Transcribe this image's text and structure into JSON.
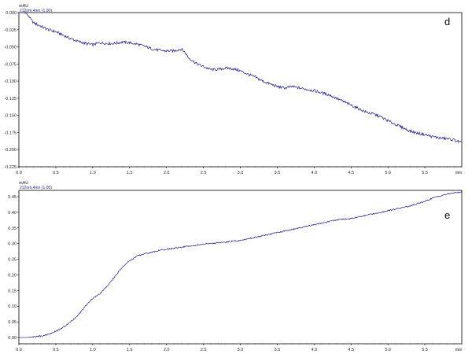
{
  "chart_data": [
    {
      "type": "line",
      "panel_label": "d",
      "y_unit": "mAU",
      "series": [
        {
          "name": "212nm,4nm (1.00)",
          "color": "#1a1a8a",
          "x": [
            0.0,
            0.05,
            0.1,
            0.15,
            0.2,
            0.3,
            0.4,
            0.5,
            0.6,
            0.7,
            0.8,
            0.9,
            1.0,
            1.1,
            1.2,
            1.3,
            1.4,
            1.5,
            1.6,
            1.7,
            1.8,
            1.9,
            2.0,
            2.1,
            2.2,
            2.25,
            2.3,
            2.4,
            2.5,
            2.6,
            2.7,
            2.8,
            2.9,
            3.0,
            3.1,
            3.2,
            3.3,
            3.4,
            3.5,
            3.6,
            3.7,
            3.8,
            3.9,
            4.0,
            4.1,
            4.2,
            4.3,
            4.4,
            4.5,
            4.6,
            4.7,
            4.8,
            4.9,
            5.0,
            5.1,
            5.2,
            5.3,
            5.4,
            5.5,
            5.6,
            5.7,
            5.8,
            5.9,
            6.0
          ],
          "y": [
            0.0,
            0.0,
            -0.001,
            -0.008,
            -0.015,
            -0.02,
            -0.025,
            -0.028,
            -0.033,
            -0.038,
            -0.042,
            -0.045,
            -0.047,
            -0.044,
            -0.045,
            -0.045,
            -0.043,
            -0.044,
            -0.046,
            -0.049,
            -0.053,
            -0.055,
            -0.056,
            -0.056,
            -0.053,
            -0.058,
            -0.066,
            -0.074,
            -0.079,
            -0.083,
            -0.083,
            -0.081,
            -0.082,
            -0.085,
            -0.09,
            -0.094,
            -0.1,
            -0.104,
            -0.108,
            -0.11,
            -0.108,
            -0.11,
            -0.112,
            -0.114,
            -0.117,
            -0.12,
            -0.125,
            -0.13,
            -0.135,
            -0.14,
            -0.145,
            -0.148,
            -0.152,
            -0.158,
            -0.163,
            -0.168,
            -0.173,
            -0.176,
            -0.178,
            -0.181,
            -0.183,
            -0.184,
            -0.186,
            -0.19
          ]
        }
      ],
      "xlim": [
        0.0,
        6.0
      ],
      "ylim": [
        -0.225,
        0.0
      ],
      "x_ticks": [
        "0.0",
        "0.5",
        "1.0",
        "1.5",
        "2.0",
        "2.5",
        "3.0",
        "3.5",
        "4.0",
        "4.5",
        "5.0",
        "5.5",
        "min"
      ],
      "y_ticks": [
        "0.000",
        "-0.025",
        "-0.050",
        "-0.075",
        "-0.100",
        "-0.125",
        "-0.150",
        "-0.175",
        "-0.200",
        "-0.225"
      ],
      "grid": false
    },
    {
      "type": "line",
      "panel_label": "e",
      "y_unit": "mAU",
      "series": [
        {
          "name": "212nm,4nm (1.00)",
          "color": "#1a1a8a",
          "x": [
            0.0,
            0.1,
            0.2,
            0.3,
            0.4,
            0.5,
            0.6,
            0.7,
            0.8,
            0.9,
            1.0,
            1.1,
            1.2,
            1.3,
            1.4,
            1.5,
            1.6,
            1.7,
            1.8,
            1.9,
            2.0,
            2.1,
            2.2,
            2.3,
            2.4,
            2.5,
            2.6,
            2.7,
            2.8,
            2.9,
            3.0,
            3.1,
            3.2,
            3.3,
            3.4,
            3.5,
            3.6,
            3.7,
            3.8,
            3.9,
            4.0,
            4.1,
            4.2,
            4.3,
            4.4,
            4.5,
            4.6,
            4.7,
            4.8,
            4.9,
            5.0,
            5.1,
            5.2,
            5.3,
            5.4,
            5.5,
            5.6,
            5.7,
            5.8,
            5.9,
            6.0
          ],
          "y": [
            0.0,
            0.0,
            0.002,
            0.005,
            0.01,
            0.02,
            0.032,
            0.05,
            0.07,
            0.1,
            0.125,
            0.14,
            0.165,
            0.195,
            0.225,
            0.245,
            0.26,
            0.268,
            0.272,
            0.278,
            0.282,
            0.285,
            0.288,
            0.292,
            0.295,
            0.298,
            0.3,
            0.302,
            0.305,
            0.308,
            0.31,
            0.315,
            0.32,
            0.325,
            0.33,
            0.335,
            0.34,
            0.345,
            0.35,
            0.355,
            0.36,
            0.365,
            0.37,
            0.375,
            0.378,
            0.38,
            0.385,
            0.39,
            0.395,
            0.4,
            0.405,
            0.41,
            0.415,
            0.42,
            0.428,
            0.435,
            0.445,
            0.452,
            0.458,
            0.462,
            0.465
          ]
        }
      ],
      "xlim": [
        0.0,
        6.0
      ],
      "ylim": [
        -0.02,
        0.47
      ],
      "x_ticks": [
        "0.0",
        "0.5",
        "1.0",
        "1.5",
        "2.0",
        "2.5",
        "3.0",
        "3.5",
        "4.0",
        "4.5",
        "5.0",
        "5.5",
        "min"
      ],
      "y_ticks": [
        "0.45",
        "0.40",
        "0.35",
        "0.30",
        "0.25",
        "0.20",
        "0.15",
        "0.10",
        "0.05",
        "0.00"
      ],
      "grid": false
    }
  ]
}
